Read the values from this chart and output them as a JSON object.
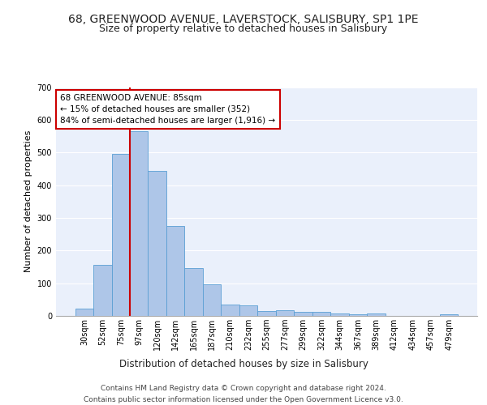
{
  "title1": "68, GREENWOOD AVENUE, LAVERSTOCK, SALISBURY, SP1 1PE",
  "title2": "Size of property relative to detached houses in Salisbury",
  "xlabel": "Distribution of detached houses by size in Salisbury",
  "ylabel": "Number of detached properties",
  "footer1": "Contains HM Land Registry data © Crown copyright and database right 2024.",
  "footer2": "Contains public sector information licensed under the Open Government Licence v3.0.",
  "bin_labels": [
    "30sqm",
    "52sqm",
    "75sqm",
    "97sqm",
    "120sqm",
    "142sqm",
    "165sqm",
    "187sqm",
    "210sqm",
    "232sqm",
    "255sqm",
    "277sqm",
    "299sqm",
    "322sqm",
    "344sqm",
    "367sqm",
    "389sqm",
    "412sqm",
    "434sqm",
    "457sqm",
    "479sqm"
  ],
  "bar_heights": [
    22,
    155,
    495,
    565,
    443,
    275,
    145,
    97,
    35,
    33,
    15,
    18,
    12,
    12,
    8,
    6,
    7,
    0,
    0,
    0,
    6
  ],
  "bar_color": "#aec6e8",
  "bar_edge_color": "#5a9fd4",
  "vline_x_index": 2,
  "vline_color": "#cc0000",
  "annotation_text": "68 GREENWOOD AVENUE: 85sqm\n← 15% of detached houses are smaller (352)\n84% of semi-detached houses are larger (1,916) →",
  "annotation_box_color": "#ffffff",
  "annotation_box_edge": "#cc0000",
  "ylim": [
    0,
    700
  ],
  "yticks": [
    0,
    100,
    200,
    300,
    400,
    500,
    600,
    700
  ],
  "background_color": "#eaf0fb",
  "grid_color": "#ffffff",
  "title1_fontsize": 10,
  "title2_fontsize": 9,
  "xlabel_fontsize": 8.5,
  "ylabel_fontsize": 8,
  "tick_fontsize": 7,
  "footer_fontsize": 6.5,
  "annotation_fontsize": 7.5
}
